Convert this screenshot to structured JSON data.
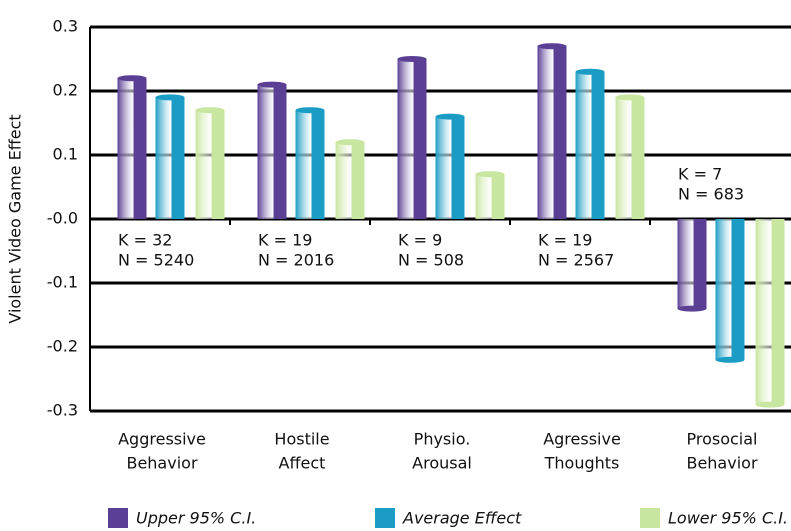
{
  "chart_data": {
    "type": "bar",
    "y_label": "Violent Video Game Effect",
    "categories": [
      [
        "Aggressive",
        "Behavior"
      ],
      [
        "Hostile",
        "Affect"
      ],
      [
        "Physio.",
        "Arousal"
      ],
      [
        "Agressive",
        "Thoughts"
      ],
      [
        "Prosocial",
        "Behavior"
      ]
    ],
    "annotations": [
      [
        "K = 32",
        "N = 5240"
      ],
      [
        "K = 19",
        "N = 2016"
      ],
      [
        "K = 9",
        "N = 508"
      ],
      [
        "K = 19",
        "N = 2567"
      ],
      [
        "K = 7",
        "N = 683"
      ]
    ],
    "series": [
      {
        "name": "Upper 95% C.I.",
        "color": "#5b3f95",
        "values": [
          0.22,
          0.21,
          0.25,
          0.27,
          -0.14
        ]
      },
      {
        "name": "Average Effect",
        "color": "#1a9cc4",
        "values": [
          0.19,
          0.17,
          0.16,
          0.23,
          -0.22
        ]
      },
      {
        "name": "Lower 95% C.I.",
        "color": "#c8e6a0",
        "values": [
          0.17,
          0.12,
          0.07,
          0.19,
          -0.29
        ]
      }
    ],
    "ylim": [
      -0.3,
      0.3
    ],
    "yticks": [
      -0.3,
      -0.2,
      -0.1,
      {
        "value": 0,
        "label": "-0.0"
      },
      0.1,
      0.2,
      0.3
    ],
    "grid": true
  }
}
